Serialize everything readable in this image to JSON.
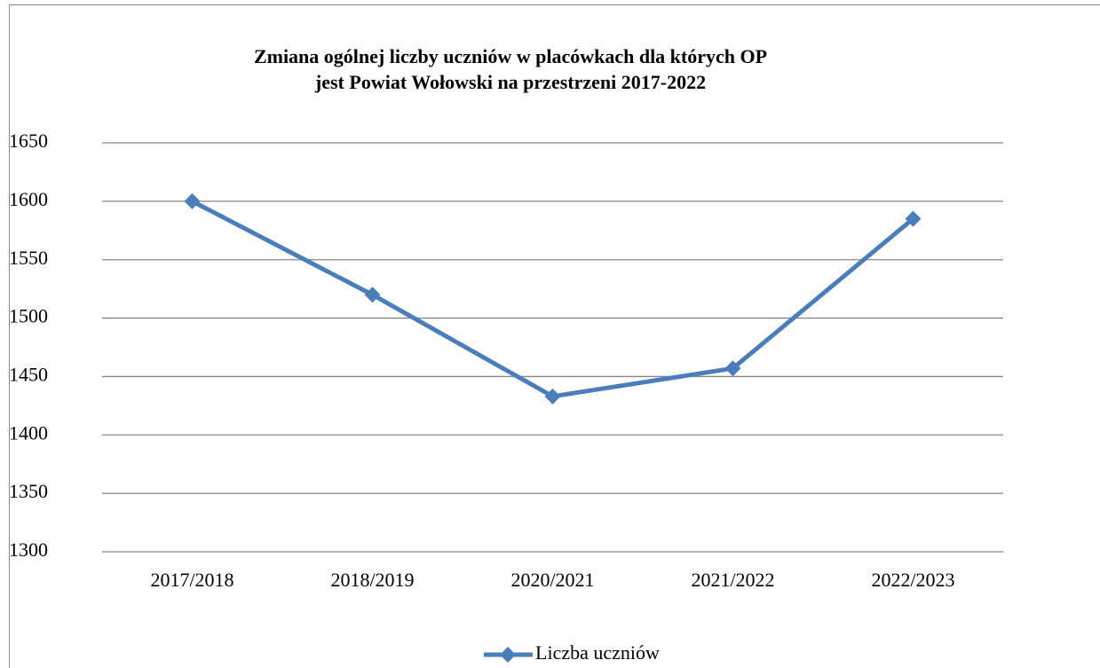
{
  "chart_data": {
    "type": "line",
    "title": [
      "Zmiana ogólnej liczby uczniów w placówkach dla których OP",
      "jest Powiat Wołowski na przestrzeni 2017-2022"
    ],
    "categories": [
      "2017/2018",
      "2018/2019",
      "2020/2021",
      "2021/2022",
      "2022/2023"
    ],
    "series": [
      {
        "name": "Liczba uczniów",
        "color": "#4a7ebb",
        "values": [
          1600,
          1520,
          1433,
          1457,
          1585
        ]
      }
    ],
    "ylim": [
      1300,
      1650
    ],
    "yticks": [
      1300,
      1350,
      1400,
      1450,
      1500,
      1550,
      1600,
      1650
    ],
    "grid": true,
    "legend": "bottom"
  }
}
